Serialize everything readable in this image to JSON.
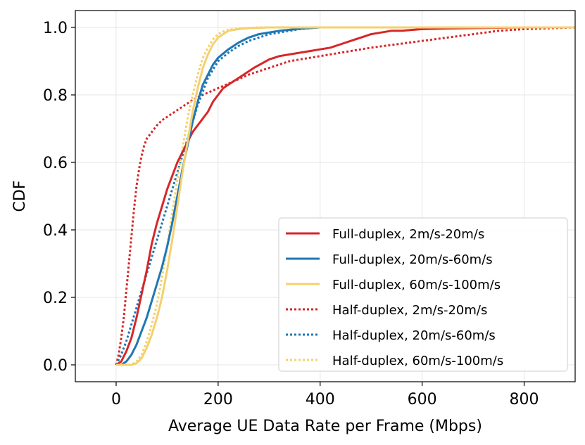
{
  "chart_data": {
    "type": "line",
    "title": "",
    "xlabel": "Average UE Data Rate per Frame (Mbps)",
    "ylabel": "CDF",
    "xlim": [
      -80,
      900
    ],
    "ylim": [
      -0.05,
      1.05
    ],
    "xticks": [
      0,
      200,
      400,
      600,
      800
    ],
    "yticks": [
      0.0,
      0.2,
      0.4,
      0.6,
      0.8,
      1.0
    ],
    "xtick_labels": [
      "0",
      "200",
      "400",
      "600",
      "800"
    ],
    "ytick_labels": [
      "0.0",
      "0.2",
      "0.4",
      "0.6",
      "0.8",
      "1.0"
    ],
    "grid": true,
    "legend_position": "lower-right",
    "series": [
      {
        "name": "Full-duplex, 2m/s-20m/s",
        "color": "#d62728",
        "style": "solid",
        "x": [
          0,
          10,
          20,
          30,
          40,
          50,
          60,
          70,
          80,
          90,
          100,
          110,
          120,
          130,
          140,
          150,
          160,
          170,
          180,
          190,
          200,
          210,
          230,
          250,
          270,
          300,
          320,
          340,
          360,
          380,
          400,
          420,
          440,
          460,
          480,
          500,
          520,
          540,
          560,
          600,
          650,
          700,
          750,
          800,
          900
        ],
        "y": [
          0,
          0.01,
          0.04,
          0.08,
          0.14,
          0.21,
          0.28,
          0.36,
          0.42,
          0.47,
          0.52,
          0.56,
          0.6,
          0.63,
          0.66,
          0.69,
          0.71,
          0.73,
          0.75,
          0.78,
          0.8,
          0.82,
          0.84,
          0.86,
          0.88,
          0.905,
          0.915,
          0.92,
          0.925,
          0.93,
          0.935,
          0.94,
          0.95,
          0.96,
          0.97,
          0.98,
          0.985,
          0.99,
          0.99,
          0.995,
          0.997,
          0.998,
          0.999,
          1.0,
          1.0
        ]
      },
      {
        "name": "Full-duplex, 20m/s-60m/s",
        "color": "#1f77b4",
        "style": "solid",
        "x": [
          0,
          10,
          20,
          30,
          40,
          50,
          60,
          70,
          80,
          90,
          100,
          110,
          120,
          130,
          140,
          150,
          160,
          170,
          180,
          190,
          200,
          220,
          240,
          260,
          280,
          300,
          320,
          340,
          360,
          380,
          400,
          450,
          900
        ],
        "y": [
          0,
          0.0,
          0.01,
          0.03,
          0.06,
          0.1,
          0.14,
          0.19,
          0.24,
          0.29,
          0.35,
          0.42,
          0.5,
          0.58,
          0.65,
          0.72,
          0.78,
          0.83,
          0.86,
          0.89,
          0.91,
          0.935,
          0.955,
          0.97,
          0.98,
          0.985,
          0.99,
          0.993,
          0.996,
          0.998,
          1.0,
          1.0,
          1.0
        ]
      },
      {
        "name": "Full-duplex, 60m/s-100m/s",
        "color": "#f5d06e",
        "style": "solid",
        "x": [
          0,
          20,
          30,
          40,
          50,
          60,
          70,
          80,
          90,
          100,
          110,
          120,
          130,
          140,
          150,
          160,
          170,
          180,
          190,
          200,
          210,
          220,
          240,
          260,
          280,
          300,
          900
        ],
        "y": [
          0,
          0,
          0.0,
          0.005,
          0.02,
          0.05,
          0.09,
          0.14,
          0.2,
          0.28,
          0.37,
          0.47,
          0.57,
          0.66,
          0.75,
          0.82,
          0.88,
          0.92,
          0.95,
          0.97,
          0.98,
          0.99,
          0.995,
          0.998,
          0.999,
          1.0,
          1.0
        ]
      },
      {
        "name": "Half-duplex, 2m/s-20m/s",
        "color": "#d62728",
        "style": "dotted",
        "x": [
          0,
          5,
          10,
          15,
          20,
          25,
          30,
          35,
          40,
          45,
          50,
          55,
          60,
          70,
          80,
          90,
          100,
          110,
          120,
          130,
          140,
          150,
          170,
          200,
          230,
          260,
          300,
          340,
          380,
          420,
          460,
          500,
          550,
          600,
          650,
          700,
          750,
          800,
          900
        ],
        "y": [
          0,
          0.03,
          0.08,
          0.14,
          0.22,
          0.3,
          0.38,
          0.46,
          0.53,
          0.58,
          0.62,
          0.65,
          0.67,
          0.69,
          0.71,
          0.725,
          0.735,
          0.745,
          0.755,
          0.765,
          0.775,
          0.785,
          0.8,
          0.82,
          0.84,
          0.86,
          0.88,
          0.9,
          0.91,
          0.92,
          0.93,
          0.94,
          0.95,
          0.96,
          0.97,
          0.98,
          0.99,
          0.995,
          1.0
        ]
      },
      {
        "name": "Half-duplex, 20m/s-60m/s",
        "color": "#1f77b4",
        "style": "dotted",
        "x": [
          0,
          10,
          20,
          30,
          40,
          50,
          60,
          70,
          80,
          90,
          100,
          110,
          120,
          130,
          140,
          150,
          160,
          170,
          180,
          190,
          200,
          220,
          240,
          260,
          280,
          300,
          320,
          340,
          360,
          380,
          400,
          900
        ],
        "y": [
          0,
          0.03,
          0.07,
          0.12,
          0.17,
          0.22,
          0.27,
          0.32,
          0.37,
          0.42,
          0.47,
          0.52,
          0.57,
          0.62,
          0.67,
          0.72,
          0.77,
          0.81,
          0.85,
          0.875,
          0.9,
          0.925,
          0.945,
          0.96,
          0.97,
          0.98,
          0.985,
          0.99,
          0.995,
          0.998,
          1.0,
          1.0
        ]
      },
      {
        "name": "Half-duplex, 60m/s-100m/s",
        "color": "#f5d06e",
        "style": "dotted",
        "x": [
          0,
          20,
          30,
          40,
          50,
          60,
          70,
          80,
          90,
          100,
          110,
          120,
          130,
          140,
          150,
          160,
          170,
          180,
          190,
          200,
          210,
          220,
          240,
          260,
          280,
          900
        ],
        "y": [
          0,
          0,
          0.0,
          0.01,
          0.03,
          0.07,
          0.12,
          0.18,
          0.26,
          0.35,
          0.45,
          0.55,
          0.64,
          0.73,
          0.8,
          0.86,
          0.91,
          0.94,
          0.965,
          0.98,
          0.988,
          0.993,
          0.997,
          0.999,
          1.0,
          1.0
        ]
      }
    ]
  }
}
